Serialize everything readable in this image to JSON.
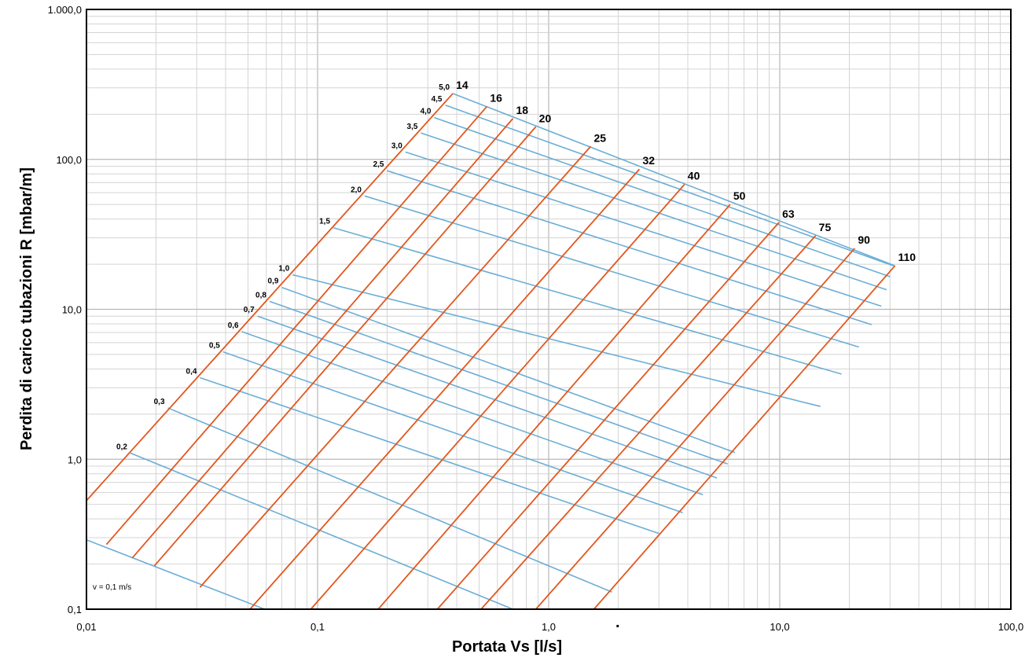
{
  "chart_data": {
    "type": "line",
    "title": "",
    "xlabel": "Portata Vs [l/s]",
    "ylabel": "Perdita di carico tubazioni R [mbar/m]",
    "xscale": "log",
    "yscale": "log",
    "xlim": [
      0.01,
      100
    ],
    "ylim": [
      0.1,
      1000
    ],
    "grid": true,
    "x_ticks": [
      {
        "value": 0.01,
        "label": "0,01"
      },
      {
        "value": 0.1,
        "label": "0,1"
      },
      {
        "value": 1,
        "label": "1,0"
      },
      {
        "value": 10,
        "label": "10,0"
      },
      {
        "value": 100,
        "label": "100,0"
      }
    ],
    "y_ticks": [
      {
        "value": 0.1,
        "label": "0,1"
      },
      {
        "value": 1,
        "label": "1,0"
      },
      {
        "value": 10,
        "label": "10,0"
      },
      {
        "value": 100,
        "label": "100,0"
      },
      {
        "value": 1000,
        "label": "1.000,0"
      }
    ],
    "diameter_series": [
      {
        "name": "14",
        "points": [
          [
            0.01,
            0.53
          ],
          [
            0.385,
            275
          ]
        ]
      },
      {
        "name": "16",
        "points": [
          [
            0.0122,
            0.27
          ],
          [
            0.54,
            225
          ]
        ]
      },
      {
        "name": "18",
        "points": [
          [
            0.0158,
            0.22
          ],
          [
            0.7,
            187
          ]
        ]
      },
      {
        "name": "20",
        "points": [
          [
            0.0197,
            0.195
          ],
          [
            0.88,
            165
          ]
        ]
      },
      {
        "name": "25",
        "points": [
          [
            0.031,
            0.14
          ],
          [
            1.52,
            122
          ]
        ]
      },
      {
        "name": "32",
        "points": [
          [
            0.051,
            0.1
          ],
          [
            2.47,
            86
          ]
        ]
      },
      {
        "name": "40",
        "points": [
          [
            0.0935,
            0.1
          ],
          [
            3.87,
            68
          ]
        ]
      },
      {
        "name": "50",
        "points": [
          [
            0.183,
            0.1
          ],
          [
            6.1,
            50
          ]
        ]
      },
      {
        "name": "63",
        "points": [
          [
            0.33,
            0.1
          ],
          [
            9.93,
            38
          ]
        ]
      },
      {
        "name": "75",
        "points": [
          [
            0.51,
            0.1
          ],
          [
            14.3,
            31
          ]
        ]
      },
      {
        "name": "90",
        "points": [
          [
            0.88,
            0.1
          ],
          [
            21.1,
            25.5
          ]
        ]
      },
      {
        "name": "110",
        "points": [
          [
            1.57,
            0.1
          ],
          [
            31.5,
            19.5
          ]
        ]
      }
    ],
    "velocity_series": [
      {
        "name": "0,1",
        "points": [
          [
            0.01,
            0.29
          ],
          [
            0.059,
            0.1
          ]
        ]
      },
      {
        "name": "0,2",
        "points": [
          [
            0.0155,
            1.1
          ],
          [
            0.7,
            0.1
          ]
        ]
      },
      {
        "name": "0,3",
        "points": [
          [
            0.0225,
            2.2
          ],
          [
            1.88,
            0.13
          ]
        ]
      },
      {
        "name": "0,4",
        "points": [
          [
            0.031,
            3.5
          ],
          [
            3.0,
            0.32
          ]
        ]
      },
      {
        "name": "0,5",
        "points": [
          [
            0.039,
            5.2
          ],
          [
            3.8,
            0.44
          ]
        ]
      },
      {
        "name": "0,6",
        "points": [
          [
            0.047,
            7.1
          ],
          [
            4.65,
            0.58
          ]
        ]
      },
      {
        "name": "0,7",
        "points": [
          [
            0.055,
            9.0
          ],
          [
            5.35,
            0.75
          ]
        ]
      },
      {
        "name": "0,8",
        "points": [
          [
            0.062,
            11.3
          ],
          [
            5.95,
            0.93
          ]
        ]
      },
      {
        "name": "0,9",
        "points": [
          [
            0.07,
            14.0
          ],
          [
            6.4,
            1.11
          ]
        ]
      },
      {
        "name": "1,0",
        "points": [
          [
            0.078,
            17.0
          ],
          [
            15.0,
            2.25
          ]
        ]
      },
      {
        "name": "1,5",
        "points": [
          [
            0.117,
            35.0
          ],
          [
            18.5,
            3.7
          ]
        ]
      },
      {
        "name": "2,0",
        "points": [
          [
            0.16,
            57.0
          ],
          [
            22.0,
            5.6
          ]
        ]
      },
      {
        "name": "2,5",
        "points": [
          [
            0.2,
            84.0
          ],
          [
            25.0,
            7.9
          ]
        ]
      },
      {
        "name": "3,0",
        "points": [
          [
            0.24,
            112.0
          ],
          [
            27.5,
            10.5
          ]
        ]
      },
      {
        "name": "3,5",
        "points": [
          [
            0.28,
            150.0
          ],
          [
            29.0,
            13.5
          ]
        ]
      },
      {
        "name": "4,0",
        "points": [
          [
            0.32,
            190.0
          ],
          [
            30.0,
            16.5
          ]
        ]
      },
      {
        "name": "4,5",
        "points": [
          [
            0.357,
            230.0
          ],
          [
            31.0,
            19.5
          ]
        ]
      },
      {
        "name": "5,0",
        "points": [
          [
            0.385,
            275.0
          ],
          [
            31.5,
            19.5
          ]
        ]
      }
    ],
    "annotations": [
      "v = 0,1 m/s"
    ],
    "footnote": "."
  },
  "colors": {
    "diameter": "#e2571e",
    "velocity": "#6baed6",
    "grid": "#d4d4d4",
    "frame": "#000000"
  }
}
